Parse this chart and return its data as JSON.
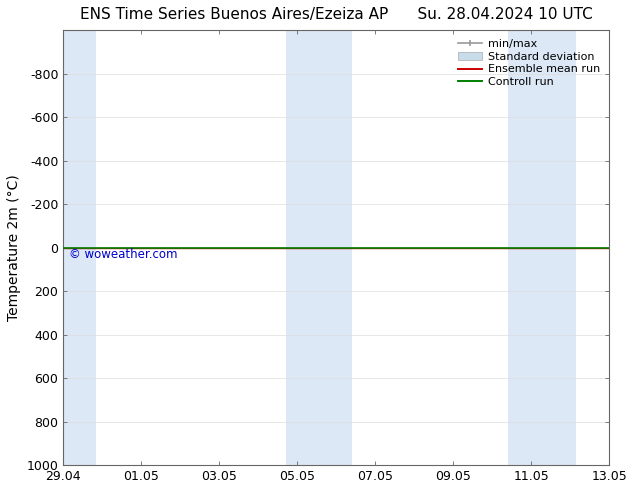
{
  "title": "ENS Time Series Buenos Aires/Ezeiza AP      Su. 28.04.2024 10 UTC",
  "ylabel": "Temperature 2m (°C)",
  "watermark": "© woweather.com",
  "watermark_color": "#0000cc",
  "ylim_min": -1000,
  "ylim_max": 1000,
  "yticks": [
    -800,
    -600,
    -400,
    -200,
    0,
    200,
    400,
    600,
    800,
    1000
  ],
  "x_min": 0,
  "x_max": 14,
  "xtick_labels": [
    "29.04",
    "01.05",
    "03.05",
    "05.05",
    "07.05",
    "09.05",
    "11.05",
    "13.05"
  ],
  "xtick_positions": [
    0,
    2,
    4,
    6,
    8,
    10,
    12,
    14
  ],
  "shaded_bands": [
    {
      "x_start": 0.0,
      "x_end": 0.85,
      "color": "#dce8f5"
    },
    {
      "x_start": 5.7,
      "x_end": 7.4,
      "color": "#dce8f5"
    },
    {
      "x_start": 11.4,
      "x_end": 13.15,
      "color": "#dce8f5"
    }
  ],
  "green_line_y": 0,
  "red_line_y": 0,
  "background_color": "#ffffff",
  "plot_bg_color": "#ffffff",
  "grid_color": "#dddddd",
  "legend_items": [
    {
      "label": "min/max",
      "color": "#aaaaaa",
      "style": "hline"
    },
    {
      "label": "Standard deviation",
      "color": "#c8dcea",
      "style": "bar"
    },
    {
      "label": "Ensemble mean run",
      "color": "#ff0000",
      "style": "line"
    },
    {
      "label": "Controll run",
      "color": "#008000",
      "style": "line"
    }
  ],
  "title_fontsize": 11,
  "axis_label_fontsize": 10,
  "tick_fontsize": 9,
  "legend_fontsize": 8
}
